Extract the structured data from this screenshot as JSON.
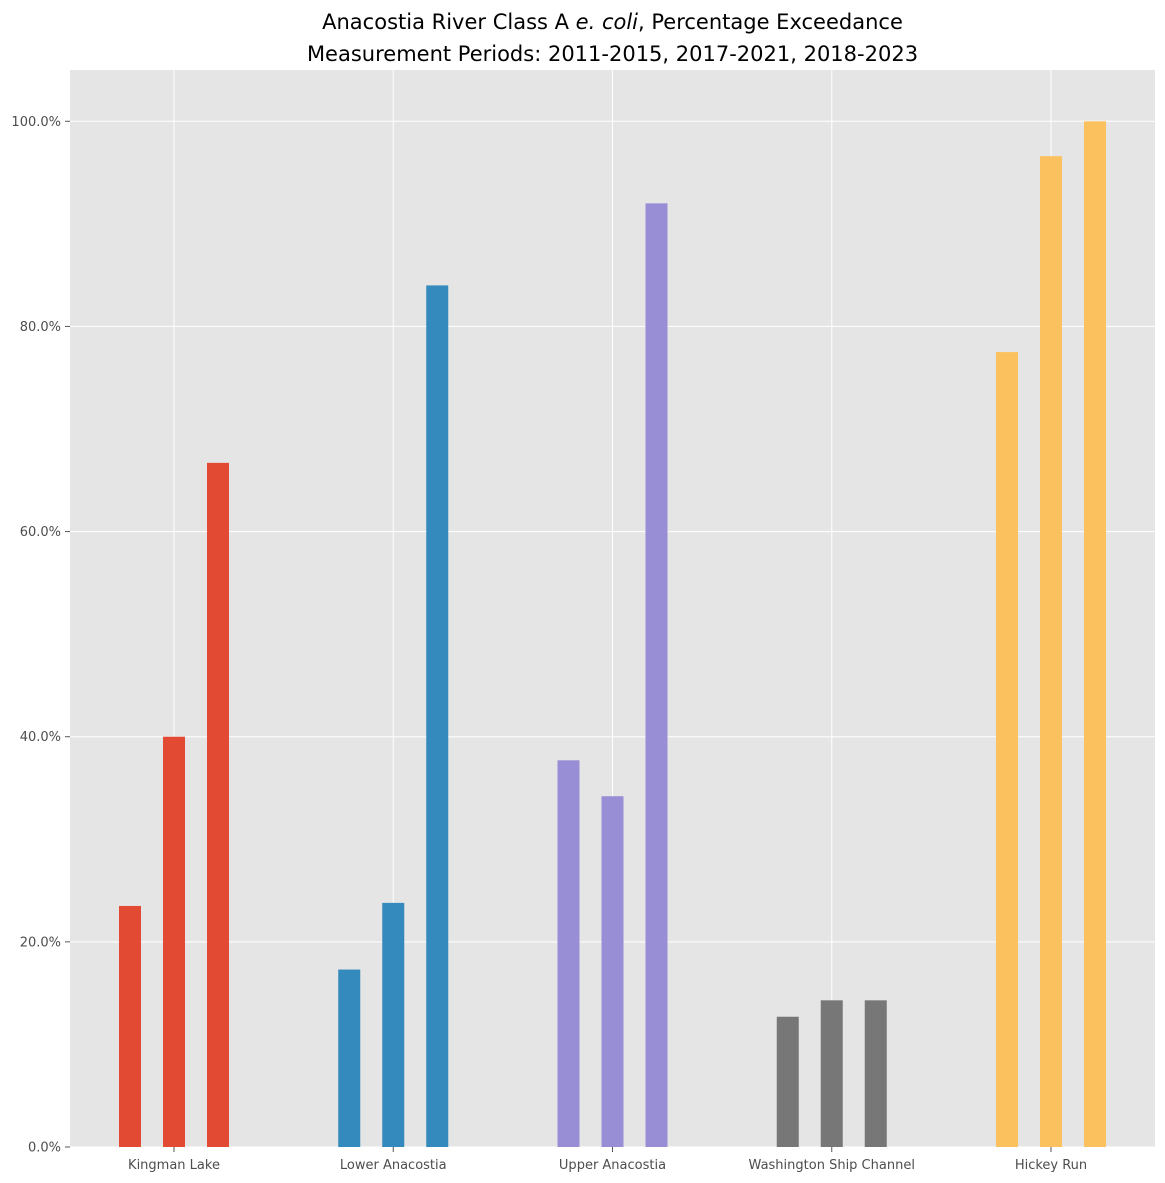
{
  "chart_data": {
    "type": "bar",
    "title": {
      "line1_prefix": "Anacostia River Class A ",
      "line1_italic": "e. coli",
      "line1_suffix": ", Percentage Exceedance",
      "line2": "Measurement Periods: 2011-2015, 2017-2021, 2018-2023"
    },
    "xlabel": "",
    "ylabel": "",
    "categories": [
      "Kingman Lake",
      "Lower Anacostia",
      "Upper Anacostia",
      "Washington Ship Channel",
      "Hickey Run"
    ],
    "groups": [
      {
        "category": "Kingman Lake",
        "color": "#E24A33",
        "values": [
          23.5,
          40.0,
          66.7
        ]
      },
      {
        "category": "Lower Anacostia",
        "color": "#348ABD",
        "values": [
          17.3,
          23.8,
          84.0
        ]
      },
      {
        "category": "Upper Anacostia",
        "color": "#988ED5",
        "values": [
          37.7,
          34.2,
          92.0
        ]
      },
      {
        "category": "Washington Ship Channel",
        "color": "#777777",
        "values": [
          12.7,
          14.3,
          14.3
        ]
      },
      {
        "category": "Hickey Run",
        "color": "#FBC15E",
        "values": [
          77.5,
          96.6,
          100.0
        ]
      }
    ],
    "ylim": [
      0,
      105
    ],
    "yticks": [
      0,
      20,
      40,
      60,
      80,
      100
    ],
    "ytick_labels": [
      "0.0%",
      "20.0%",
      "40.0%",
      "60.0%",
      "80.0%",
      "100.0%"
    ],
    "grid": true,
    "legend": "none",
    "colors": {
      "background": "#E5E5E5",
      "grid": "#FFFFFF",
      "tick_text": "#4D4D4D"
    }
  }
}
